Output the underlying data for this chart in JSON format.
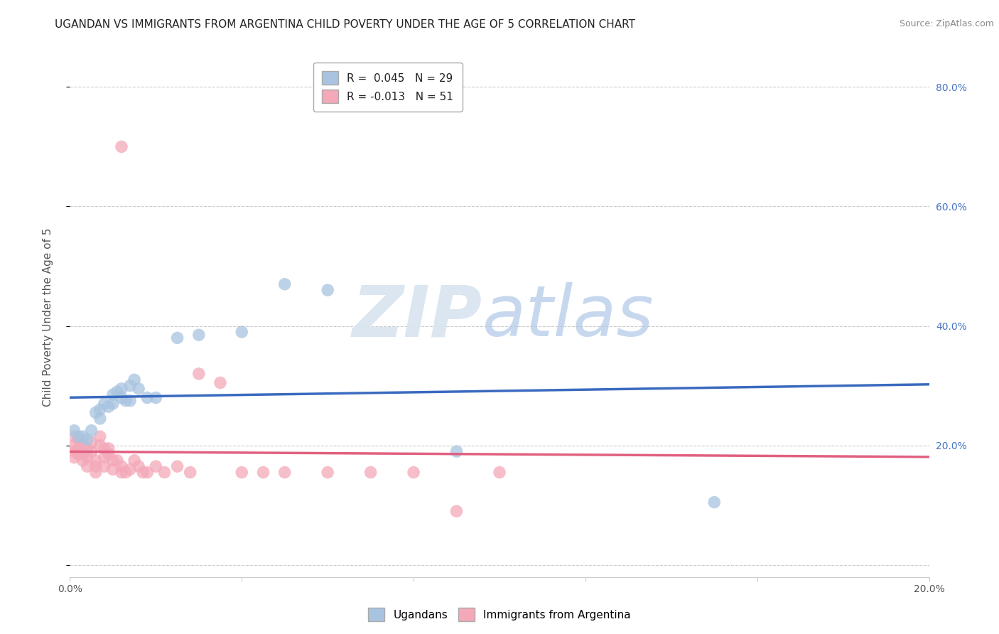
{
  "title": "UGANDAN VS IMMIGRANTS FROM ARGENTINA CHILD POVERTY UNDER THE AGE OF 5 CORRELATION CHART",
  "source": "Source: ZipAtlas.com",
  "ylabel": "Child Poverty Under the Age of 5",
  "xlim": [
    0.0,
    0.2
  ],
  "ylim": [
    -0.02,
    0.85
  ],
  "yticks": [
    0.0,
    0.2,
    0.4,
    0.6,
    0.8
  ],
  "yticklabels_right": [
    "",
    "20.0%",
    "40.0%",
    "60.0%",
    "80.0%"
  ],
  "xtick_left_label": "0.0%",
  "xtick_right_label": "20.0%",
  "ugandan_color": "#a8c4e0",
  "argentina_color": "#f4a8b8",
  "ugandan_line_color": "#3a6abf",
  "argentina_line_color": "#e06080",
  "R_ugandan": 0.045,
  "N_ugandan": 29,
  "R_argentina": -0.013,
  "N_argentina": 51,
  "ugandan_points": [
    [
      0.001,
      0.225
    ],
    [
      0.002,
      0.215
    ],
    [
      0.003,
      0.215
    ],
    [
      0.004,
      0.21
    ],
    [
      0.005,
      0.225
    ],
    [
      0.006,
      0.255
    ],
    [
      0.007,
      0.26
    ],
    [
      0.007,
      0.245
    ],
    [
      0.008,
      0.27
    ],
    [
      0.009,
      0.265
    ],
    [
      0.01,
      0.285
    ],
    [
      0.01,
      0.27
    ],
    [
      0.011,
      0.29
    ],
    [
      0.012,
      0.295
    ],
    [
      0.012,
      0.28
    ],
    [
      0.013,
      0.275
    ],
    [
      0.014,
      0.3
    ],
    [
      0.014,
      0.275
    ],
    [
      0.015,
      0.31
    ],
    [
      0.016,
      0.295
    ],
    [
      0.018,
      0.28
    ],
    [
      0.02,
      0.28
    ],
    [
      0.025,
      0.38
    ],
    [
      0.03,
      0.385
    ],
    [
      0.04,
      0.39
    ],
    [
      0.05,
      0.47
    ],
    [
      0.06,
      0.46
    ],
    [
      0.09,
      0.19
    ],
    [
      0.15,
      0.105
    ]
  ],
  "argentina_points": [
    [
      0.001,
      0.215
    ],
    [
      0.001,
      0.2
    ],
    [
      0.001,
      0.19
    ],
    [
      0.001,
      0.18
    ],
    [
      0.002,
      0.21
    ],
    [
      0.002,
      0.195
    ],
    [
      0.002,
      0.185
    ],
    [
      0.003,
      0.2
    ],
    [
      0.003,
      0.185
    ],
    [
      0.003,
      0.175
    ],
    [
      0.004,
      0.195
    ],
    [
      0.004,
      0.18
    ],
    [
      0.004,
      0.165
    ],
    [
      0.005,
      0.205
    ],
    [
      0.005,
      0.19
    ],
    [
      0.006,
      0.175
    ],
    [
      0.006,
      0.165
    ],
    [
      0.006,
      0.155
    ],
    [
      0.007,
      0.215
    ],
    [
      0.007,
      0.2
    ],
    [
      0.008,
      0.195
    ],
    [
      0.008,
      0.18
    ],
    [
      0.008,
      0.165
    ],
    [
      0.009,
      0.195
    ],
    [
      0.009,
      0.185
    ],
    [
      0.01,
      0.175
    ],
    [
      0.01,
      0.16
    ],
    [
      0.011,
      0.175
    ],
    [
      0.012,
      0.165
    ],
    [
      0.012,
      0.155
    ],
    [
      0.013,
      0.155
    ],
    [
      0.014,
      0.16
    ],
    [
      0.015,
      0.175
    ],
    [
      0.016,
      0.165
    ],
    [
      0.017,
      0.155
    ],
    [
      0.018,
      0.155
    ],
    [
      0.02,
      0.165
    ],
    [
      0.022,
      0.155
    ],
    [
      0.025,
      0.165
    ],
    [
      0.028,
      0.155
    ],
    [
      0.03,
      0.32
    ],
    [
      0.035,
      0.305
    ],
    [
      0.04,
      0.155
    ],
    [
      0.045,
      0.155
    ],
    [
      0.05,
      0.155
    ],
    [
      0.06,
      0.155
    ],
    [
      0.07,
      0.155
    ],
    [
      0.08,
      0.155
    ],
    [
      0.09,
      0.09
    ],
    [
      0.1,
      0.155
    ],
    [
      0.012,
      0.7
    ]
  ],
  "background_color": "#ffffff",
  "grid_color": "#cccccc",
  "title_fontsize": 11,
  "axis_label_fontsize": 11,
  "tick_fontsize": 10,
  "legend_fontsize": 11,
  "watermark_zip": "ZIP",
  "watermark_atlas": "atlas"
}
